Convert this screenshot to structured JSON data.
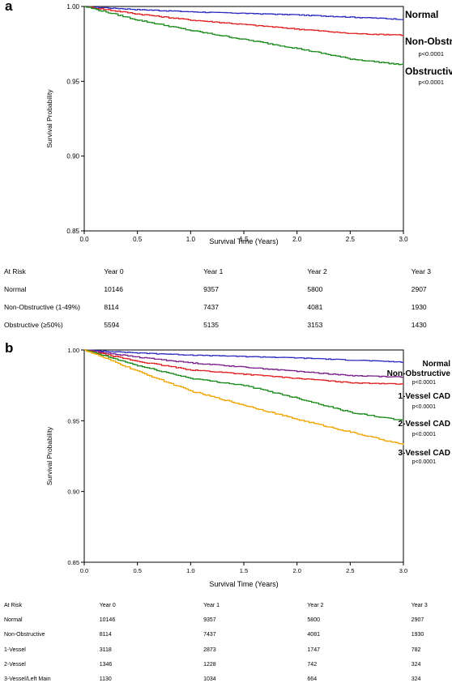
{
  "panels": [
    {
      "letter": "a",
      "chart_data": {
        "type": "line",
        "xlabel": "Survival Time (Years)",
        "ylabel": "Survival Probability",
        "xlim": [
          0,
          3
        ],
        "ylim": [
          0.85,
          1.0
        ],
        "x_ticks": [
          "0.0",
          "0.5",
          "1.0",
          "1.5",
          "2.0",
          "2.5",
          "3.0"
        ],
        "y_ticks": [
          "0.85",
          "0.90",
          "0.95",
          "1.00"
        ],
        "series": [
          {
            "name": "Normal",
            "color": "#2b2bbf",
            "pvalue": "",
            "x": [
              0,
              0.5,
              1.0,
              1.5,
              2.0,
              2.5,
              3.0
            ],
            "y": [
              1.0,
              0.998,
              0.9965,
              0.9955,
              0.9945,
              0.993,
              0.9915
            ]
          },
          {
            "name": "Non-Obstructive",
            "color": "#e02020",
            "pvalue": "p<0.0001",
            "x": [
              0,
              0.5,
              1.0,
              1.5,
              2.0,
              2.5,
              3.0
            ],
            "y": [
              1.0,
              0.995,
              0.991,
              0.988,
              0.985,
              0.982,
              0.981
            ]
          },
          {
            "name": "Obstructive",
            "color": "#1a8a1a",
            "pvalue": "p<0.0001",
            "x": [
              0,
              0.5,
              1.0,
              1.5,
              2.0,
              2.5,
              3.0
            ],
            "y": [
              1.0,
              0.991,
              0.984,
              0.978,
              0.972,
              0.965,
              0.961
            ]
          }
        ]
      },
      "risk_table": {
        "header": [
          "At Risk",
          "Year 0",
          "Year 1",
          "Year 2",
          "Year 3"
        ],
        "rows": [
          [
            "Normal",
            "10146",
            "9357",
            "5800",
            "2907"
          ],
          [
            "Non-Obstructive (1-49%)",
            "8114",
            "7437",
            "4081",
            "1930"
          ],
          [
            "Obstructive (≥50%)",
            "5594",
            "5135",
            "3153",
            "1430"
          ]
        ]
      }
    },
    {
      "letter": "b",
      "chart_data": {
        "type": "line",
        "xlabel": "Survival Time (Years)",
        "ylabel": "Survival Probability",
        "xlim": [
          0,
          3
        ],
        "ylim": [
          0.85,
          1.0
        ],
        "x_ticks": [
          "0.0",
          "0.5",
          "1.0",
          "1.5",
          "2.0",
          "2.5",
          "3.0"
        ],
        "y_ticks": [
          "0.85",
          "0.90",
          "0.95",
          "1.00"
        ],
        "series": [
          {
            "name": "Normal",
            "color": "#2b2bbf",
            "pvalue": "",
            "x": [
              0,
              0.5,
              1.0,
              1.5,
              2.0,
              2.5,
              3.0
            ],
            "y": [
              1.0,
              0.998,
              0.9965,
              0.9955,
              0.9945,
              0.993,
              0.9915
            ]
          },
          {
            "name": "Non-Obstructive",
            "color": "#7a1f8a",
            "pvalue": "p<0.0001",
            "x": [
              0,
              0.5,
              1.0,
              1.5,
              2.0,
              2.5,
              3.0
            ],
            "y": [
              1.0,
              0.995,
              0.991,
              0.988,
              0.985,
              0.982,
              0.981
            ]
          },
          {
            "name": "1-Vessel CAD",
            "color": "#e02020",
            "pvalue": "p<0.0001",
            "x": [
              0,
              0.5,
              1.0,
              1.5,
              2.0,
              2.5,
              3.0
            ],
            "y": [
              1.0,
              0.992,
              0.986,
              0.983,
              0.98,
              0.977,
              0.976
            ]
          },
          {
            "name": "2-Vessel CAD",
            "color": "#1a8a1a",
            "pvalue": "p<0.0001",
            "x": [
              0,
              0.5,
              1.0,
              1.5,
              2.0,
              2.5,
              3.0
            ],
            "y": [
              1.0,
              0.989,
              0.98,
              0.975,
              0.966,
              0.956,
              0.95
            ]
          },
          {
            "name": "3-Vessel CAD",
            "color": "#f0a400",
            "pvalue": "p<0.0001",
            "x": [
              0,
              0.5,
              1.0,
              1.5,
              2.0,
              2.5,
              3.0
            ],
            "y": [
              1.0,
              0.985,
              0.971,
              0.961,
              0.951,
              0.942,
              0.933
            ]
          }
        ]
      },
      "risk_table": {
        "header": [
          "At Risk",
          "Year 0",
          "Year 1",
          "Year 2",
          "Year 3"
        ],
        "rows": [
          [
            "Normal",
            "10146",
            "9357",
            "5800",
            "2907"
          ],
          [
            "Non-Obstructive",
            "8114",
            "7437",
            "4081",
            "1930"
          ],
          [
            "1-Vessel",
            "3118",
            "2873",
            "1747",
            "782"
          ],
          [
            "2-Vessel",
            "1346",
            "1228",
            "742",
            "324"
          ],
          [
            "3-Vessel/Left Main",
            "1130",
            "1034",
            "664",
            "324"
          ]
        ]
      }
    }
  ]
}
